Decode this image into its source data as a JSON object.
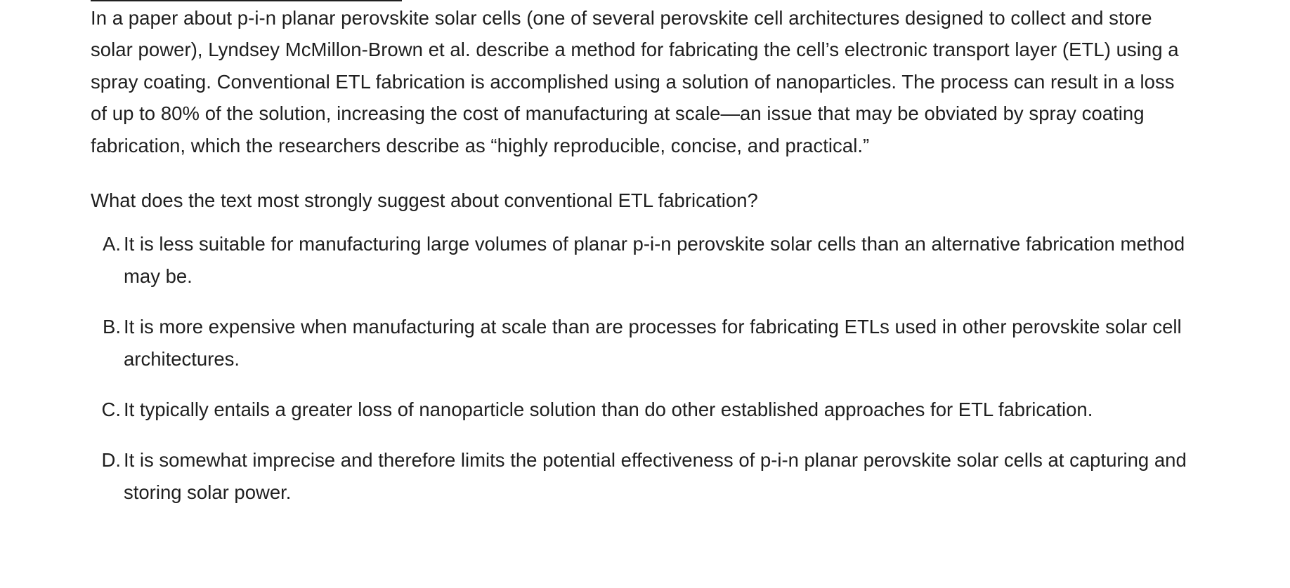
{
  "passage": "In a paper about p-i-n planar perovskite solar cells (one of several perovskite cell architectures designed to collect and store solar power), Lyndsey McMillon-Brown et al. describe a method for fabricating the cell’s electronic transport layer (ETL) using a spray coating. Conventional ETL fabrication is accomplished using a solution of nanoparticles. The process can result in a loss of up to 80% of the solution, increasing the cost of manufacturing at scale—an issue that may be obviated by spray coating fabrication, which the researchers describe as “highly reproducible, concise, and practical.”",
  "question": "What does the text most strongly suggest about conventional ETL fabrication?",
  "choices": [
    {
      "letter": "A.",
      "text": "It is less suitable for manufacturing large volumes of planar p-i-n perovskite solar cells than an alternative fabrication method may be."
    },
    {
      "letter": "B.",
      "text": "It is more expensive when manufacturing at scale than are processes for fabricating ETLs used in other perovskite solar cell architectures."
    },
    {
      "letter": "C.",
      "text": "It typically entails a greater loss of nanoparticle solution than do other established approaches for ETL fabrication."
    },
    {
      "letter": "D.",
      "text": "It is somewhat imprecise and therefore limits the potential effectiveness of p-i-n planar perovskite solar cells at capturing and storing solar power."
    }
  ]
}
